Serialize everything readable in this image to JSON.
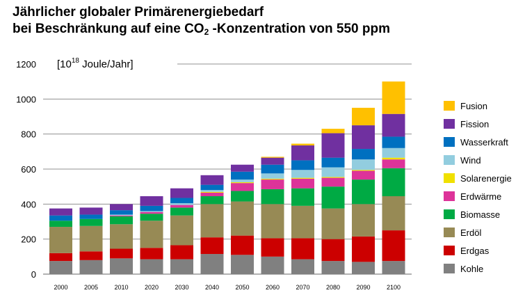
{
  "title": {
    "line1": "Jährlicher globaler Primärenergiebedarf",
    "line2_prefix": "bei Beschränkung auf eine CO",
    "line2_sub": "2",
    "line2_suffix": " -Konzentration von 550 ppm"
  },
  "chart_data": {
    "type": "bar",
    "stacked": true,
    "unit_label": {
      "prefix": "[10",
      "exponent": "18",
      "suffix": " Joule/Jahr]"
    },
    "categories": [
      "2000",
      "2005",
      "2010",
      "2020",
      "2030",
      "2040",
      "2050",
      "2060",
      "2070",
      "2080",
      "2090",
      "2100"
    ],
    "ylim": [
      0,
      1200
    ],
    "yticks": [
      0,
      200,
      400,
      600,
      800,
      1000,
      1200
    ],
    "legend_position": "right",
    "series": [
      {
        "name": "Kohle",
        "color": "#808080",
        "values": [
          75,
          80,
          90,
          85,
          85,
          115,
          110,
          100,
          85,
          75,
          70,
          75
        ]
      },
      {
        "name": "Erdgas",
        "color": "#cc0000",
        "values": [
          45,
          50,
          55,
          65,
          80,
          95,
          110,
          105,
          120,
          125,
          145,
          175
        ]
      },
      {
        "name": "Erdöl",
        "color": "#978a55",
        "values": [
          150,
          145,
          140,
          155,
          170,
          190,
          195,
          195,
          185,
          175,
          185,
          195
        ]
      },
      {
        "name": "Biomasse",
        "color": "#00aa44",
        "values": [
          35,
          40,
          45,
          40,
          45,
          45,
          60,
          85,
          100,
          125,
          140,
          160
        ]
      },
      {
        "name": "Erdwärme",
        "color": "#dd3399",
        "values": [
          0,
          0,
          5,
          10,
          15,
          20,
          45,
          55,
          55,
          50,
          50,
          50
        ]
      },
      {
        "name": "Solarenergie",
        "color": "#f0e000",
        "values": [
          0,
          0,
          0,
          0,
          0,
          5,
          5,
          5,
          5,
          5,
          5,
          10
        ]
      },
      {
        "name": "Wind",
        "color": "#92cddf",
        "values": [
          0,
          0,
          5,
          5,
          10,
          10,
          15,
          30,
          45,
          55,
          60,
          55
        ]
      },
      {
        "name": "Wasserkraft",
        "color": "#0070c0",
        "values": [
          30,
          25,
          25,
          30,
          30,
          30,
          45,
          50,
          55,
          55,
          60,
          65
        ]
      },
      {
        "name": "Fission",
        "color": "#7030a0",
        "values": [
          40,
          40,
          35,
          55,
          55,
          55,
          40,
          40,
          85,
          140,
          135,
          130
        ]
      },
      {
        "name": "Fusion",
        "color": "#ffc000",
        "values": [
          0,
          0,
          0,
          0,
          0,
          0,
          0,
          5,
          10,
          25,
          100,
          185
        ]
      }
    ]
  }
}
